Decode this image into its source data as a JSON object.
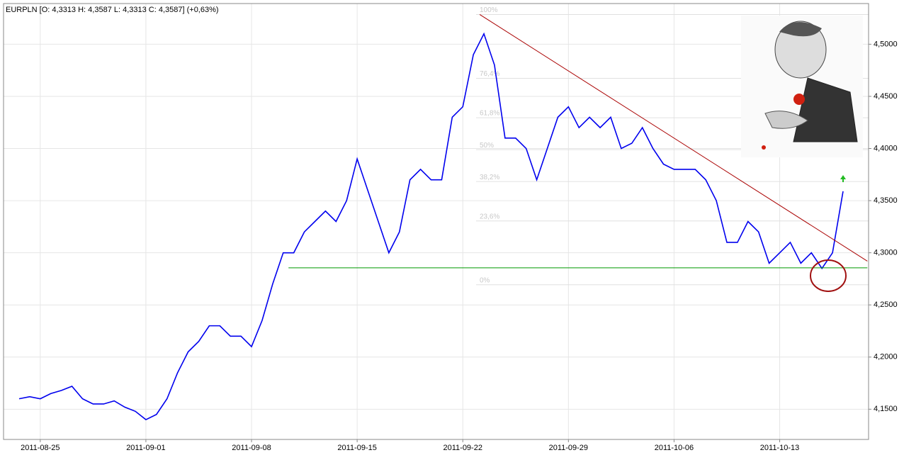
{
  "chart_data": {
    "type": "line",
    "title": "EURPLN [O: 4,3313  H: 4,3587  L: 4,3313  C: 4,3587] (+0,63%)",
    "categories": [
      null,
      null,
      "2011-08-25",
      null,
      null,
      null,
      null,
      null,
      null,
      null,
      null,
      null,
      "2011-09-01",
      null,
      null,
      null,
      null,
      null,
      null,
      null,
      null,
      null,
      "2011-09-08",
      null,
      null,
      null,
      null,
      null,
      null,
      null,
      null,
      null,
      "2011-09-15",
      null,
      null,
      null,
      null,
      null,
      null,
      null,
      null,
      null,
      "2011-09-22",
      null,
      null,
      null,
      null,
      null,
      null,
      null,
      null,
      null,
      "2011-09-29",
      null,
      null,
      null,
      null,
      null,
      null,
      null,
      null,
      null,
      "2011-10-06",
      null,
      null,
      null,
      null,
      null,
      null,
      null,
      null,
      null,
      "2011-10-13",
      null,
      null,
      null,
      null,
      null,
      null
    ],
    "series": [
      {
        "name": "EURPLN",
        "color": "#0000ee",
        "values": [
          4.16,
          4.162,
          4.16,
          4.165,
          4.168,
          4.172,
          4.16,
          4.155,
          4.155,
          4.158,
          4.152,
          4.148,
          4.14,
          4.145,
          4.16,
          4.185,
          4.205,
          4.215,
          4.23,
          4.23,
          4.22,
          4.22,
          4.21,
          4.235,
          4.27,
          4.3,
          4.3,
          4.32,
          4.33,
          4.34,
          4.33,
          4.35,
          4.39,
          4.36,
          4.33,
          4.3,
          4.32,
          4.37,
          4.38,
          4.37,
          4.37,
          4.43,
          4.44,
          4.49,
          4.51,
          4.48,
          4.41,
          4.41,
          4.4,
          4.37,
          4.4,
          4.43,
          4.44,
          4.42,
          4.43,
          4.42,
          4.43,
          4.4,
          4.405,
          4.42,
          4.4,
          4.385,
          4.38,
          4.38,
          4.38,
          4.37,
          4.35,
          4.31,
          4.31,
          4.33,
          4.32,
          4.29,
          4.3,
          4.31,
          4.29,
          4.3,
          4.285,
          4.3,
          4.359
        ]
      }
    ],
    "ylim": [
      4.121,
      4.539
    ],
    "yticks": [
      {
        "value": 4.15,
        "label": "4,1500"
      },
      {
        "value": 4.2,
        "label": "4,2000"
      },
      {
        "value": 4.25,
        "label": "4,2500"
      },
      {
        "value": 4.3,
        "label": "4,3000"
      },
      {
        "value": 4.35,
        "label": "4,3500"
      },
      {
        "value": 4.4,
        "label": "4,4000"
      },
      {
        "value": 4.45,
        "label": "4,4500"
      },
      {
        "value": 4.5,
        "label": "4,5000"
      }
    ],
    "grid": true,
    "fib_levels": [
      {
        "label": "100%",
        "value": 4.5285
      },
      {
        "label": "76,4%",
        "value": 4.4673
      },
      {
        "label": "61,8%",
        "value": 4.4295
      },
      {
        "label": "50%",
        "value": 4.3989
      },
      {
        "label": "38,2%",
        "value": 4.3683
      },
      {
        "label": "23,6%",
        "value": 4.3305
      },
      {
        "label": "0%",
        "value": 4.2693
      }
    ],
    "trendline": {
      "color": "#aa0000",
      "points": [
        [
          43.6,
          4.5285
        ],
        [
          80.3,
          4.292
        ]
      ]
    },
    "support": {
      "color": "#009900",
      "points": [
        [
          25.5,
          4.2856
        ],
        [
          80.3,
          4.2856
        ]
      ]
    }
  }
}
